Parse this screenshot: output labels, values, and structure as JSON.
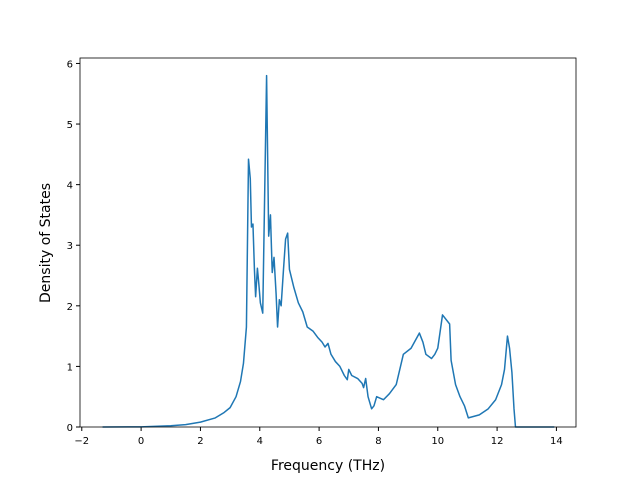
{
  "chart_data": {
    "type": "line",
    "x_label": "Frequency (THz)",
    "y_label": "Density of States",
    "x": [
      -1.3,
      0,
      1,
      1.5,
      2,
      2.5,
      2.8,
      3.0,
      3.2,
      3.35,
      3.45,
      3.55,
      3.62,
      3.68,
      3.72,
      3.77,
      3.82,
      3.86,
      3.92,
      3.97,
      4.02,
      4.1,
      4.23,
      4.3,
      4.36,
      4.42,
      4.48,
      4.55,
      4.6,
      4.66,
      4.72,
      4.8,
      4.87,
      4.94,
      5.0,
      5.15,
      5.3,
      5.45,
      5.6,
      5.8,
      5.95,
      6.1,
      6.2,
      6.3,
      6.4,
      6.55,
      6.7,
      6.85,
      6.95,
      7.0,
      7.1,
      7.3,
      7.45,
      7.5,
      7.57,
      7.65,
      7.77,
      7.85,
      7.94,
      8.17,
      8.37,
      8.6,
      8.84,
      9.1,
      9.38,
      9.5,
      9.6,
      9.79,
      9.9,
      10.0,
      10.16,
      10.4,
      10.45,
      10.6,
      10.75,
      10.9,
      11.03,
      11.4,
      11.7,
      11.95,
      12.15,
      12.25,
      12.35,
      12.42,
      12.5,
      12.57,
      12.62,
      13.93
    ],
    "series": [
      {
        "color": "#1f77b4",
        "values": [
          0,
          0.003,
          0.02,
          0.04,
          0.08,
          0.15,
          0.24,
          0.32,
          0.5,
          0.75,
          1.05,
          1.65,
          4.42,
          4.1,
          3.3,
          3.35,
          2.6,
          2.15,
          2.62,
          2.35,
          2.05,
          1.88,
          5.8,
          3.15,
          3.5,
          2.55,
          2.8,
          2.2,
          1.65,
          2.1,
          2.0,
          2.6,
          3.1,
          3.2,
          2.6,
          2.3,
          2.05,
          1.9,
          1.65,
          1.58,
          1.48,
          1.4,
          1.32,
          1.38,
          1.2,
          1.08,
          1.0,
          0.85,
          0.78,
          0.95,
          0.85,
          0.8,
          0.72,
          0.65,
          0.8,
          0.5,
          0.3,
          0.35,
          0.5,
          0.45,
          0.55,
          0.7,
          1.2,
          1.3,
          1.55,
          1.4,
          1.2,
          1.13,
          1.2,
          1.3,
          1.85,
          1.7,
          1.1,
          0.7,
          0.5,
          0.35,
          0.15,
          0.2,
          0.3,
          0.45,
          0.7,
          0.95,
          1.5,
          1.3,
          0.9,
          0.3,
          0,
          0
        ]
      }
    ],
    "xlim": [
      -2.06,
      14.66
    ],
    "ylim": [
      0,
      6.09
    ],
    "xticks": [
      {
        "value": -2,
        "label": "−2"
      },
      0,
      2,
      4,
      6,
      8,
      10,
      12,
      14
    ],
    "yticks": [
      0,
      1,
      2,
      3,
      4,
      5,
      6
    ]
  }
}
